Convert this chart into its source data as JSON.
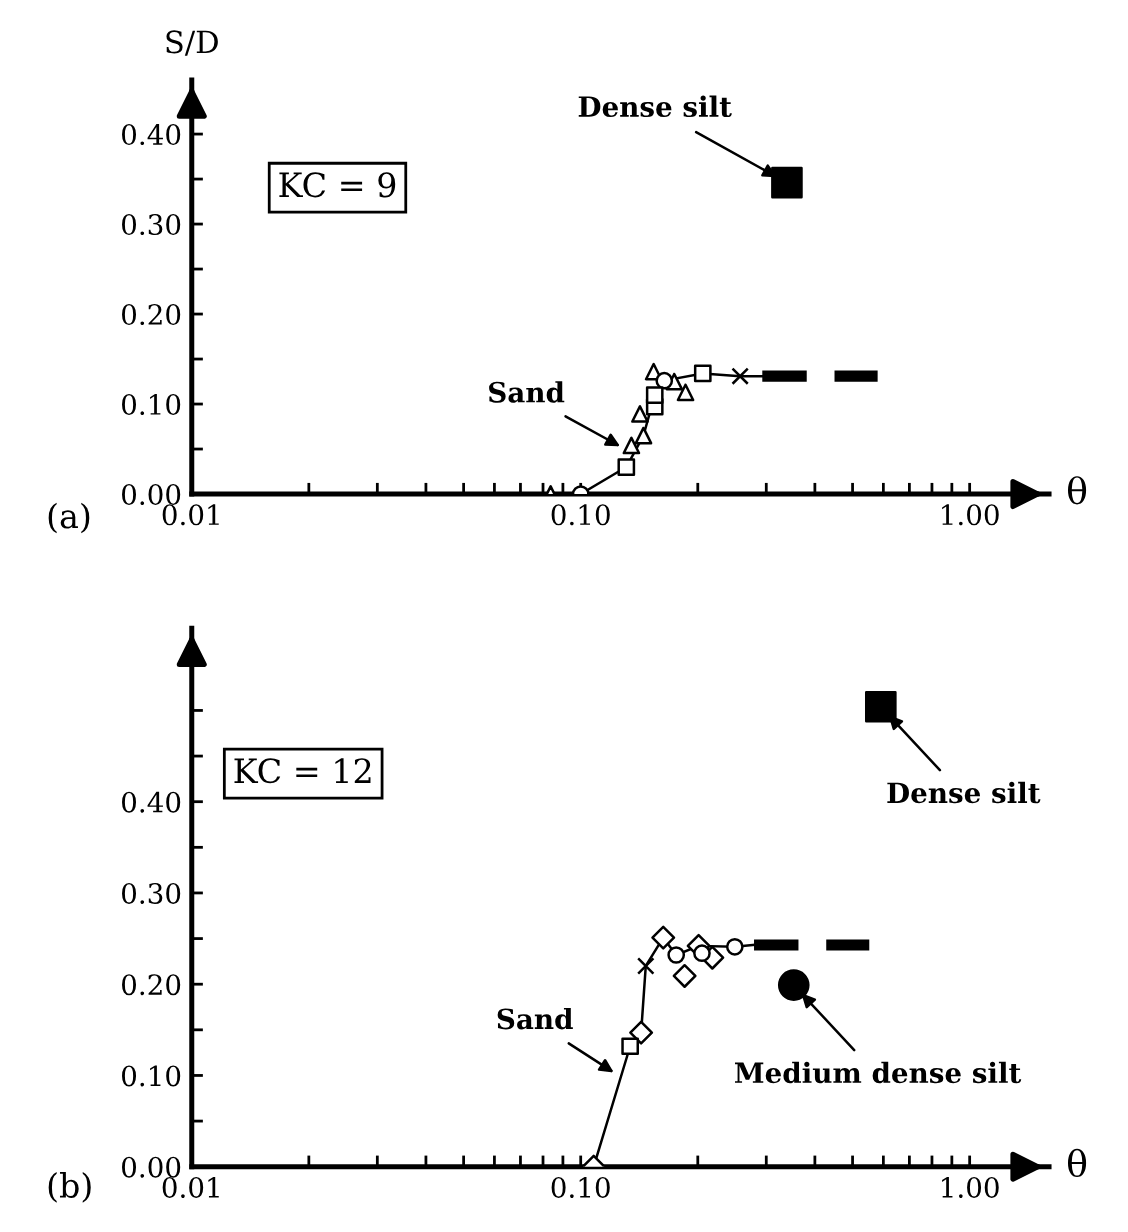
{
  "chart_data": [
    {
      "type": "scatter",
      "xlabel": "θ",
      "ylabel": "S/D",
      "log": "x",
      "legend": "top right",
      "xlim": [
        0.01,
        1.6
      ],
      "ylim": [
        0,
        0.46
      ],
      "xticks": [
        {
          "value": 0.01,
          "label": "0.01"
        },
        {
          "value": 0.02,
          "label": null
        },
        {
          "value": 0.03,
          "label": null
        },
        {
          "value": 0.04,
          "label": null
        },
        {
          "value": 0.05,
          "label": null
        },
        {
          "value": 0.06,
          "label": null
        },
        {
          "value": 0.07,
          "label": null
        },
        {
          "value": 0.08,
          "label": null
        },
        {
          "value": 0.09,
          "label": null
        },
        {
          "value": 0.1,
          "label": "0.10"
        },
        {
          "value": 0.2,
          "label": null
        },
        {
          "value": 0.3,
          "label": null
        },
        {
          "value": 0.4,
          "label": null
        },
        {
          "value": 0.5,
          "label": null
        },
        {
          "value": 0.6,
          "label": null
        },
        {
          "value": 0.7,
          "label": null
        },
        {
          "value": 0.8,
          "label": null
        },
        {
          "value": 0.9,
          "label": null
        },
        {
          "value": 1,
          "label": "1.00"
        }
      ],
      "yticks": [
        {
          "value": 0,
          "label": "0.00"
        },
        {
          "value": 0.05,
          "label": null
        },
        {
          "value": 0.1,
          "label": "0.10"
        },
        {
          "value": 0.15,
          "label": null
        },
        {
          "value": 0.2,
          "label": "0.20"
        },
        {
          "value": 0.25,
          "label": null
        },
        {
          "value": 0.3,
          "label": "0.30"
        },
        {
          "value": 0.35,
          "label": null
        },
        {
          "value": 0.4,
          "label": "0.40"
        }
      ],
      "series": [
        {
          "type": "line",
          "color": "#000000",
          "marker": "none",
          "line_style": "solid",
          "x": [
            0.0837,
            0.1,
            0.131,
            0.145,
            0.155,
            0.164,
            0.206,
            0.257,
            0.293
          ],
          "values": [
            0,
            0,
            0.03,
            0.065,
            0.11,
            0.126,
            0.134,
            0.131,
            0.131
          ]
        },
        {
          "color": "#000000",
          "marker": "triangle",
          "x": [
            0.0837,
            0.135,
            0.145,
            0.142,
            0.154,
            0.174,
            0.186
          ],
          "values": [
            0,
            0.054,
            0.065,
            0.089,
            0.136,
            0.125,
            0.113
          ]
        },
        {
          "color": "#000000",
          "marker": "circle",
          "x": [
            0.1,
            0.164
          ],
          "values": [
            0,
            0.126
          ]
        },
        {
          "color": "#000000",
          "marker": "square",
          "x": [
            0.131,
            0.155,
            0.155,
            0.206
          ],
          "values": [
            0.03,
            0.097,
            0.11,
            0.134
          ]
        },
        {
          "color": "#000000",
          "marker": "cross",
          "x": [
            0.257
          ],
          "values": [
            0.131
          ]
        },
        {
          "type": "line",
          "color": "#000000",
          "marker": "none",
          "line_style": "dashed",
          "x": [
            0.293,
            0.58
          ],
          "values": [
            0.131,
            0.131
          ]
        },
        {
          "name": "Dense silt",
          "color": "#000000",
          "marker": "square",
          "x": [
            0.339
          ],
          "values": [
            0.346
          ]
        }
      ],
      "annotations": [
        "KC = 9",
        {
          "text": "Sand",
          "x": 0.13,
          "y": 0.05
        },
        "(a)"
      ]
    },
    {
      "type": "scatter",
      "xlabel": "θ",
      "log": "x",
      "legend": "right",
      "xlim": [
        0.01,
        1.6
      ],
      "ylim": [
        0,
        0.59
      ],
      "xticks": [
        {
          "value": 0.01,
          "label": "0.01"
        },
        {
          "value": 0.02,
          "label": null
        },
        {
          "value": 0.03,
          "label": null
        },
        {
          "value": 0.04,
          "label": null
        },
        {
          "value": 0.05,
          "label": null
        },
        {
          "value": 0.06,
          "label": null
        },
        {
          "value": 0.07,
          "label": null
        },
        {
          "value": 0.08,
          "label": null
        },
        {
          "value": 0.09,
          "label": null
        },
        {
          "value": 0.1,
          "label": "0.10"
        },
        {
          "value": 0.2,
          "label": null
        },
        {
          "value": 0.3,
          "label": null
        },
        {
          "value": 0.4,
          "label": null
        },
        {
          "value": 0.5,
          "label": null
        },
        {
          "value": 0.6,
          "label": null
        },
        {
          "value": 0.7,
          "label": null
        },
        {
          "value": 0.8,
          "label": null
        },
        {
          "value": 0.9,
          "label": null
        },
        {
          "value": 1,
          "label": "1.00"
        }
      ],
      "yticks": [
        {
          "value": 0,
          "label": "0.00"
        },
        {
          "value": 0.05,
          "label": null
        },
        {
          "value": 0.1,
          "label": "0.10"
        },
        {
          "value": 0.15,
          "label": null
        },
        {
          "value": 0.2,
          "label": "0.20"
        },
        {
          "value": 0.25,
          "label": null
        },
        {
          "value": 0.3,
          "label": "0.30"
        },
        {
          "value": 0.35,
          "label": null
        },
        {
          "value": 0.4,
          "label": "0.40"
        },
        {
          "value": 0.45,
          "label": null
        },
        {
          "value": 0.5,
          "label": null
        }
      ],
      "series": [
        {
          "type": "line",
          "color": "#000000",
          "marker": "none",
          "line_style": "solid",
          "x": [
            0.108,
            0.134,
            0.143,
            0.147,
            0.163,
            0.176,
            0.201,
            0.249,
            0.279
          ],
          "values": [
            0,
            0.132,
            0.147,
            0.22,
            0.251,
            0.232,
            0.242,
            0.241,
            0.243
          ]
        },
        {
          "color": "#000000",
          "marker": "diamond",
          "x": [
            0.108,
            0.143,
            0.163,
            0.185,
            0.201,
            0.218
          ],
          "values": [
            0,
            0.147,
            0.251,
            0.209,
            0.242,
            0.229
          ]
        },
        {
          "color": "#000000",
          "marker": "circle",
          "x": [
            0.176,
            0.205,
            0.249
          ],
          "values": [
            0.232,
            0.234,
            0.241
          ]
        },
        {
          "color": "#000000",
          "marker": "square",
          "x": [
            0.134
          ],
          "values": [
            0.132
          ]
        },
        {
          "color": "#000000",
          "marker": "cross",
          "x": [
            0.147
          ],
          "values": [
            0.22
          ]
        },
        {
          "type": "line",
          "color": "#000000",
          "marker": "none",
          "line_style": "dashed",
          "x": [
            0.279,
            0.552
          ],
          "values": [
            0.243,
            0.243
          ]
        },
        {
          "name": "Dense silt",
          "color": "#000000",
          "marker": "square",
          "x": [
            0.591
          ],
          "values": [
            0.504
          ]
        },
        {
          "name": "Medium dense silt",
          "color": "#000000",
          "marker": "circle",
          "x": [
            0.353
          ],
          "values": [
            0.199
          ]
        }
      ],
      "annotations": [
        "KC = 12",
        {
          "text": "Sand",
          "x": 0.125,
          "y": 0.1
        },
        "(b)"
      ]
    }
  ]
}
